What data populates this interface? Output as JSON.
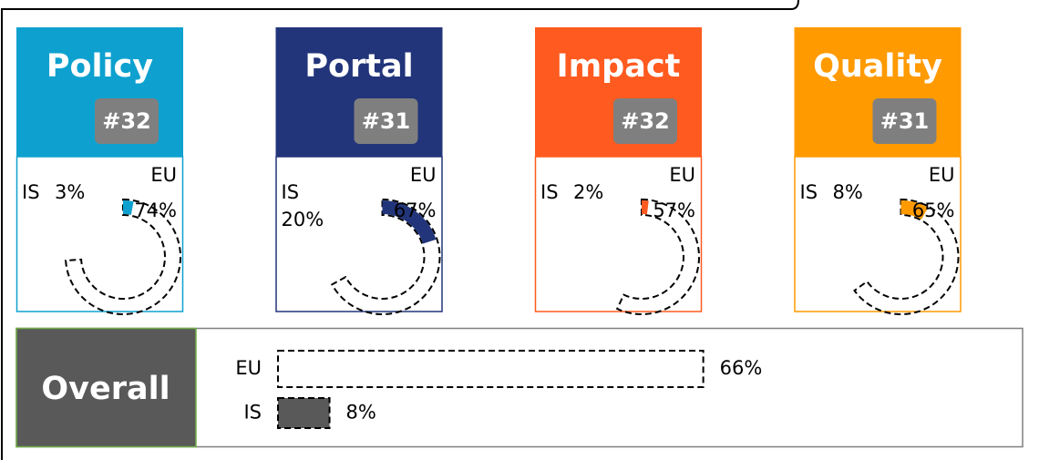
{
  "chart_data": [
    {
      "type": "radial",
      "title": "Policy",
      "subtitle": "#32",
      "color": "#0ea1cf",
      "categories": [
        "IS",
        "EU"
      ],
      "values": [
        3,
        74
      ],
      "value_labels": [
        "3%",
        "74%"
      ]
    },
    {
      "type": "radial",
      "title": "Portal",
      "subtitle": "#31",
      "color": "#22357a",
      "categories": [
        "IS",
        "EU"
      ],
      "values": [
        20,
        67
      ],
      "value_labels": [
        "20%",
        "67%"
      ]
    },
    {
      "type": "radial",
      "title": "Impact",
      "subtitle": "#32",
      "color": "#ff5a1f",
      "categories": [
        "IS",
        "EU"
      ],
      "values": [
        2,
        57
      ],
      "value_labels": [
        "2%",
        "57%"
      ]
    },
    {
      "type": "radial",
      "title": "Quality",
      "subtitle": "#31",
      "color": "#ff9a00",
      "categories": [
        "IS",
        "EU"
      ],
      "values": [
        8,
        65
      ],
      "value_labels": [
        "8%",
        "65%"
      ]
    },
    {
      "type": "hbar",
      "title": "Overall",
      "color": "#595959",
      "categories": [
        "EU",
        "IS"
      ],
      "values": [
        66,
        8
      ],
      "value_labels": [
        "66%",
        "8%"
      ]
    }
  ]
}
